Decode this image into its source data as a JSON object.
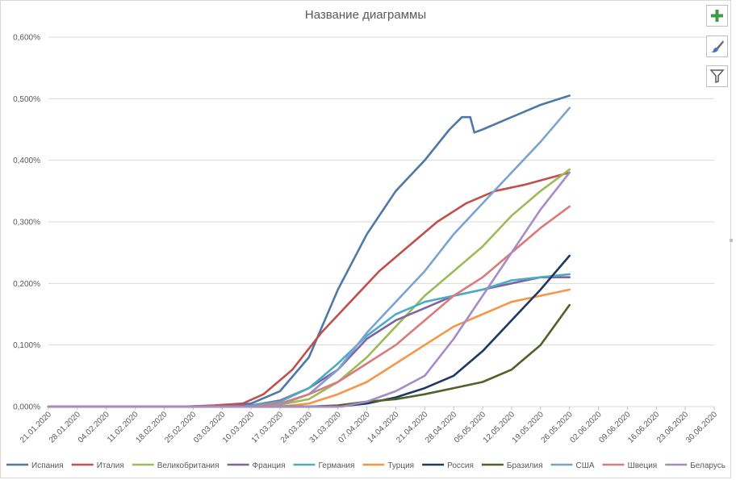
{
  "chart_data": {
    "type": "line",
    "title": "Название диаграммы",
    "xlabel": "",
    "ylabel": "",
    "ylim": [
      0,
      0.006
    ],
    "y_ticks": [
      "0,000%",
      "0,100%",
      "0,200%",
      "0,300%",
      "0,400%",
      "0,500%",
      "0,600%"
    ],
    "x_ticks": [
      "21.01.2020",
      "28.01.2020",
      "04.02.2020",
      "11.02.2020",
      "18.02.2020",
      "25.02.2020",
      "03.03.2020",
      "10.03.2020",
      "17.03.2020",
      "24.03.2020",
      "31.03.2020",
      "07.04.2020",
      "14.04.2020",
      "21.04.2020",
      "28.04.2020",
      "05.05.2020",
      "12.05.2020",
      "19.05.2020",
      "26.05.2020",
      "02.06.2020",
      "09.06.2020",
      "16.06.2020",
      "23.06.2020",
      "30.06.2020"
    ],
    "x_start": "21.01.2020",
    "x_end": "30.06.2020",
    "grid": true,
    "legend_position": "bottom",
    "series": [
      {
        "name": "Испания",
        "color": "#4e79a7",
        "points": [
          [
            "21.01.2020",
            0
          ],
          [
            "01.03.2020",
            0
          ],
          [
            "10.03.2020",
            5e-05
          ],
          [
            "17.03.2020",
            0.00025
          ],
          [
            "24.03.2020",
            0.0008
          ],
          [
            "31.03.2020",
            0.0019
          ],
          [
            "07.04.2020",
            0.0028
          ],
          [
            "14.04.2020",
            0.0035
          ],
          [
            "21.04.2020",
            0.004
          ],
          [
            "27.04.2020",
            0.0045
          ],
          [
            "30.04.2020",
            0.0047
          ],
          [
            "02.05.2020",
            0.0047
          ],
          [
            "03.05.2020",
            0.00445
          ],
          [
            "05.05.2020",
            0.0045
          ],
          [
            "12.05.2020",
            0.0047
          ],
          [
            "19.05.2020",
            0.0049
          ],
          [
            "26.05.2020",
            0.00505
          ]
        ]
      },
      {
        "name": "Италия",
        "color": "#c0504d",
        "points": [
          [
            "21.01.2020",
            0
          ],
          [
            "22.02.2020",
            0
          ],
          [
            "01.03.2020",
            2e-05
          ],
          [
            "08.03.2020",
            5e-05
          ],
          [
            "13.03.2020",
            0.0002
          ],
          [
            "20.03.2020",
            0.0006
          ],
          [
            "27.03.2020",
            0.0012
          ],
          [
            "03.04.2020",
            0.0017
          ],
          [
            "10.04.2020",
            0.0022
          ],
          [
            "17.04.2020",
            0.0026
          ],
          [
            "24.04.2020",
            0.003
          ],
          [
            "01.05.2020",
            0.0033
          ],
          [
            "08.05.2020",
            0.0035
          ],
          [
            "15.05.2020",
            0.0036
          ],
          [
            "26.05.2020",
            0.0038
          ]
        ]
      },
      {
        "name": "Великобритания",
        "color": "#9bbb59",
        "points": [
          [
            "21.01.2020",
            0
          ],
          [
            "10.03.2020",
            0
          ],
          [
            "17.03.2020",
            3e-05
          ],
          [
            "24.03.2020",
            0.00012
          ],
          [
            "31.03.2020",
            0.0004
          ],
          [
            "07.04.2020",
            0.0008
          ],
          [
            "14.04.2020",
            0.0013
          ],
          [
            "21.04.2020",
            0.0018
          ],
          [
            "28.04.2020",
            0.0022
          ],
          [
            "05.05.2020",
            0.0026
          ],
          [
            "12.05.2020",
            0.0031
          ],
          [
            "19.05.2020",
            0.0035
          ],
          [
            "26.05.2020",
            0.00385
          ]
        ]
      },
      {
        "name": "Франция",
        "color": "#8064a2",
        "points": [
          [
            "21.01.2020",
            0
          ],
          [
            "01.03.2020",
            0
          ],
          [
            "10.03.2020",
            2e-05
          ],
          [
            "17.03.2020",
            0.0001
          ],
          [
            "24.03.2020",
            0.0003
          ],
          [
            "31.03.2020",
            0.0006
          ],
          [
            "07.04.2020",
            0.0011
          ],
          [
            "14.04.2020",
            0.0014
          ],
          [
            "21.04.2020",
            0.0016
          ],
          [
            "28.04.2020",
            0.0018
          ],
          [
            "05.05.2020",
            0.0019
          ],
          [
            "12.05.2020",
            0.002
          ],
          [
            "19.05.2020",
            0.0021
          ],
          [
            "26.05.2020",
            0.0021
          ]
        ]
      },
      {
        "name": "Германия",
        "color": "#4bacc6",
        "points": [
          [
            "21.01.2020",
            0
          ],
          [
            "08.03.2020",
            0
          ],
          [
            "17.03.2020",
            8e-05
          ],
          [
            "24.03.2020",
            0.0003
          ],
          [
            "31.03.2020",
            0.0007
          ],
          [
            "07.04.2020",
            0.00115
          ],
          [
            "14.04.2020",
            0.0015
          ],
          [
            "21.04.2020",
            0.0017
          ],
          [
            "28.04.2020",
            0.0018
          ],
          [
            "05.05.2020",
            0.0019
          ],
          [
            "12.05.2020",
            0.00205
          ],
          [
            "19.05.2020",
            0.0021
          ],
          [
            "26.05.2020",
            0.00215
          ]
        ]
      },
      {
        "name": "Турция",
        "color": "#f79646",
        "points": [
          [
            "21.01.2020",
            0
          ],
          [
            "17.03.2020",
            0
          ],
          [
            "24.03.2020",
            5e-05
          ],
          [
            "31.03.2020",
            0.0002
          ],
          [
            "07.04.2020",
            0.0004
          ],
          [
            "14.04.2020",
            0.0007
          ],
          [
            "21.04.2020",
            0.001
          ],
          [
            "28.04.2020",
            0.0013
          ],
          [
            "05.05.2020",
            0.0015
          ],
          [
            "12.05.2020",
            0.0017
          ],
          [
            "19.05.2020",
            0.0018
          ],
          [
            "26.05.2020",
            0.0019
          ]
        ]
      },
      {
        "name": "Россия",
        "color": "#1f3864",
        "points": [
          [
            "21.01.2020",
            0
          ],
          [
            "31.03.2020",
            0
          ],
          [
            "07.04.2020",
            5e-05
          ],
          [
            "14.04.2020",
            0.00015
          ],
          [
            "21.04.2020",
            0.0003
          ],
          [
            "28.04.2020",
            0.0005
          ],
          [
            "05.05.2020",
            0.0009
          ],
          [
            "12.05.2020",
            0.0014
          ],
          [
            "19.05.2020",
            0.0019
          ],
          [
            "26.05.2020",
            0.00245
          ]
        ]
      },
      {
        "name": "Бразилия",
        "color": "#4f6228",
        "points": [
          [
            "21.01.2020",
            0
          ],
          [
            "24.03.2020",
            0
          ],
          [
            "31.03.2020",
            2e-05
          ],
          [
            "07.04.2020",
            8e-05
          ],
          [
            "14.04.2020",
            0.00012
          ],
          [
            "21.04.2020",
            0.0002
          ],
          [
            "28.04.2020",
            0.0003
          ],
          [
            "05.05.2020",
            0.0004
          ],
          [
            "12.05.2020",
            0.0006
          ],
          [
            "19.05.2020",
            0.001
          ],
          [
            "26.05.2020",
            0.00165
          ]
        ]
      },
      {
        "name": "США",
        "color": "#7ba3d1",
        "points": [
          [
            "21.01.2020",
            0
          ],
          [
            "10.03.2020",
            0
          ],
          [
            "17.03.2020",
            3e-05
          ],
          [
            "24.03.2020",
            0.0002
          ],
          [
            "31.03.2020",
            0.0006
          ],
          [
            "07.04.2020",
            0.0012
          ],
          [
            "14.04.2020",
            0.0017
          ],
          [
            "21.04.2020",
            0.0022
          ],
          [
            "28.04.2020",
            0.0028
          ],
          [
            "05.05.2020",
            0.0033
          ],
          [
            "12.05.2020",
            0.0038
          ],
          [
            "19.05.2020",
            0.0043
          ],
          [
            "26.05.2020",
            0.00485
          ]
        ]
      },
      {
        "name": "Швеция",
        "color": "#da7a7a",
        "points": [
          [
            "21.01.2020",
            0
          ],
          [
            "10.03.2020",
            0
          ],
          [
            "17.03.2020",
            5e-05
          ],
          [
            "24.03.2020",
            0.0002
          ],
          [
            "31.03.2020",
            0.0004
          ],
          [
            "07.04.2020",
            0.0007
          ],
          [
            "14.04.2020",
            0.001
          ],
          [
            "21.04.2020",
            0.0014
          ],
          [
            "28.04.2020",
            0.0018
          ],
          [
            "05.05.2020",
            0.0021
          ],
          [
            "12.05.2020",
            0.0025
          ],
          [
            "19.05.2020",
            0.0029
          ],
          [
            "26.05.2020",
            0.00325
          ]
        ]
      },
      {
        "name": "Беларусь",
        "color": "#a48cc8",
        "points": [
          [
            "21.01.2020",
            0
          ],
          [
            "01.04.2020",
            0
          ],
          [
            "07.04.2020",
            8e-05
          ],
          [
            "14.04.2020",
            0.00025
          ],
          [
            "21.04.2020",
            0.0005
          ],
          [
            "28.04.2020",
            0.0011
          ],
          [
            "05.05.2020",
            0.0018
          ],
          [
            "12.05.2020",
            0.0025
          ],
          [
            "19.05.2020",
            0.0032
          ],
          [
            "26.05.2020",
            0.0038
          ]
        ]
      }
    ]
  },
  "toolbar": {
    "add_icon": "plus-icon",
    "style_icon": "brush-icon",
    "filter_icon": "filter-icon"
  }
}
